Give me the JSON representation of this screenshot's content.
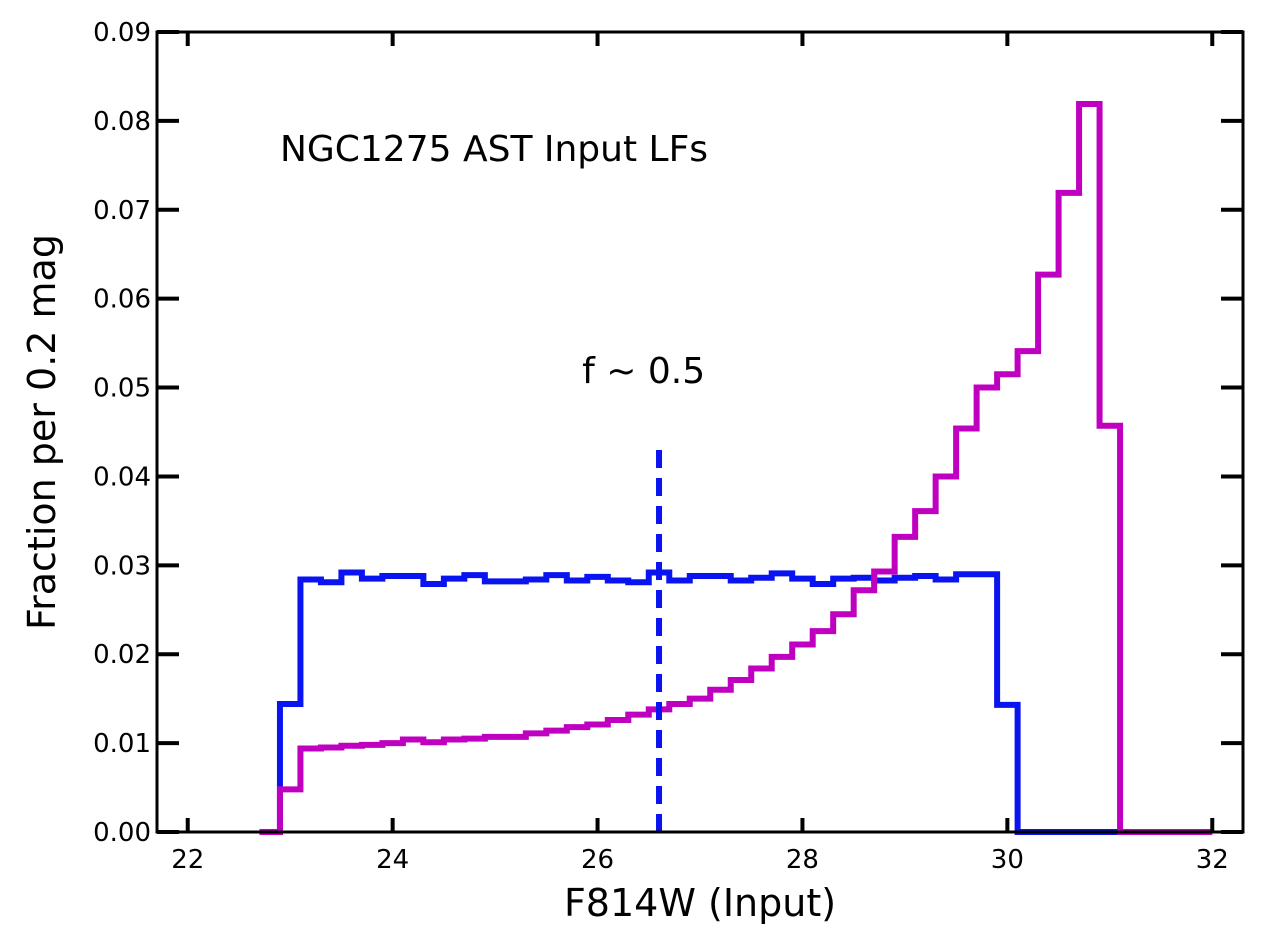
{
  "chart_data": {
    "type": "line",
    "title": "",
    "xlabel": "F814W (Input)",
    "ylabel": "Fraction per 0.2 mag",
    "xlim": [
      21.7,
      32.3
    ],
    "ylim": [
      0,
      0.09
    ],
    "x_ticks": [
      22,
      24,
      26,
      28,
      30,
      32
    ],
    "x_tick_labels": [
      "22",
      "24",
      "26",
      "28",
      "30",
      "32"
    ],
    "y_ticks": [
      0.0,
      0.01,
      0.02,
      0.03,
      0.04,
      0.05,
      0.06,
      0.07,
      0.08,
      0.09
    ],
    "y_tick_labels": [
      "0.00",
      "0.01",
      "0.02",
      "0.03",
      "0.04",
      "0.05",
      "0.06",
      "0.07",
      "0.08",
      "0.09"
    ],
    "grid": false,
    "annotations": [
      {
        "text": "NGC1275 AST Input LFs",
        "x": 22.9,
        "y": 0.0755
      },
      {
        "text": "f ~ 0.5",
        "x": 26.45,
        "y": 0.0505
      }
    ],
    "reference_lines": [
      {
        "orientation": "vertical",
        "x": 26.6,
        "y_range": [
          0,
          0.043
        ],
        "style": "dashed",
        "color": "#0a14f0"
      }
    ],
    "series": [
      {
        "color": "#0a14f0",
        "drawstyle": "steps",
        "bin_edges": [
          22.8,
          22.9,
          23.1,
          23.3,
          23.5,
          23.7,
          23.9,
          24.1,
          24.3,
          24.5,
          24.7,
          24.9,
          25.1,
          25.3,
          25.5,
          25.7,
          25.9,
          26.1,
          26.3,
          26.5,
          26.7,
          26.9,
          27.1,
          27.3,
          27.5,
          27.7,
          27.9,
          28.1,
          28.3,
          28.5,
          28.7,
          28.9,
          29.1,
          29.3,
          29.5,
          29.7,
          29.9,
          30.1,
          31.2
        ],
        "values": [
          0.0,
          0.0144,
          0.0284,
          0.0281,
          0.0292,
          0.0285,
          0.0288,
          0.0288,
          0.0279,
          0.0285,
          0.0289,
          0.0282,
          0.0282,
          0.0284,
          0.0289,
          0.0283,
          0.0287,
          0.0283,
          0.0281,
          0.0292,
          0.0283,
          0.0288,
          0.0288,
          0.0283,
          0.0286,
          0.0291,
          0.0285,
          0.0279,
          0.0285,
          0.0286,
          0.0283,
          0.0286,
          0.0288,
          0.0284,
          0.029,
          0.029,
          0.0143,
          0.0
        ]
      },
      {
        "color": "#c000c0",
        "drawstyle": "steps",
        "bin_edges": [
          22.7,
          22.9,
          23.1,
          23.3,
          23.5,
          23.7,
          23.9,
          24.1,
          24.3,
          24.5,
          24.7,
          24.9,
          25.1,
          25.3,
          25.5,
          25.7,
          25.9,
          26.1,
          26.3,
          26.5,
          26.7,
          26.9,
          27.1,
          27.3,
          27.5,
          27.7,
          27.9,
          28.1,
          28.3,
          28.5,
          28.7,
          28.9,
          29.1,
          29.3,
          29.5,
          29.7,
          29.9,
          30.1,
          30.3,
          30.5,
          30.7,
          30.9,
          31.1,
          32.0
        ],
        "values": [
          0.0,
          0.0048,
          0.0094,
          0.0095,
          0.0097,
          0.0098,
          0.01,
          0.0104,
          0.0101,
          0.0104,
          0.0105,
          0.0107,
          0.0107,
          0.0111,
          0.0114,
          0.0118,
          0.0121,
          0.0126,
          0.0132,
          0.0138,
          0.0144,
          0.015,
          0.016,
          0.0171,
          0.0184,
          0.0197,
          0.0211,
          0.0226,
          0.0245,
          0.0272,
          0.0293,
          0.0332,
          0.0361,
          0.04,
          0.0454,
          0.05,
          0.0515,
          0.0541,
          0.0627,
          0.0719,
          0.0819,
          0.0457,
          0.0
        ]
      }
    ]
  }
}
